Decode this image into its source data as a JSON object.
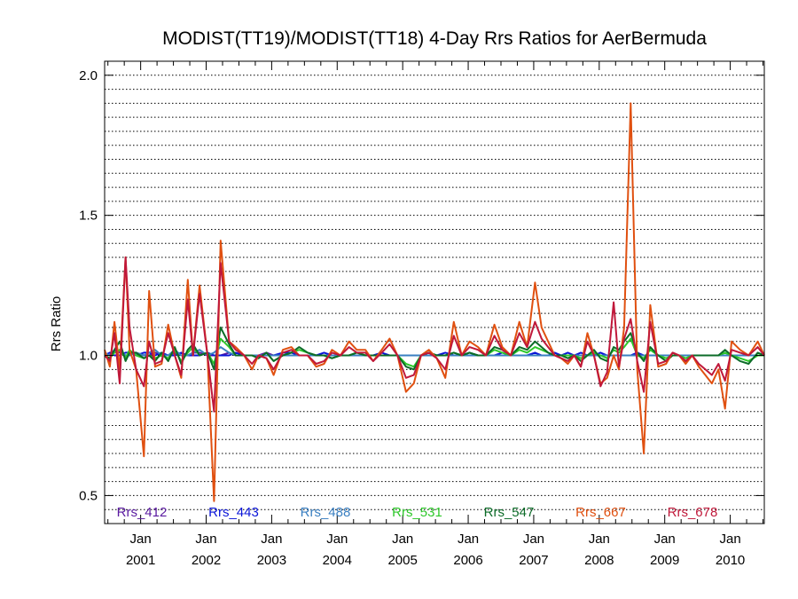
{
  "chart_data": {
    "type": "line",
    "title": "MODIST(TT19)/MODIST(TT18) 4-Day Rrs Ratios for AerBermuda",
    "xlabel": "",
    "ylabel": "Rrs Ratio",
    "ylim": [
      0.4,
      2.05
    ],
    "xlim": [
      2000.45,
      2010.52
    ],
    "yticks": [
      0.5,
      1.0,
      1.5,
      2.0
    ],
    "ytick_labels": [
      "0.5",
      "1.0",
      "1.5",
      "2.0"
    ],
    "xticks": [
      2001.0,
      2002.0,
      2003.0,
      2004.0,
      2005.0,
      2006.0,
      2007.0,
      2008.0,
      2009.0,
      2010.0
    ],
    "xtick_labels": [
      [
        "Jan",
        "2001"
      ],
      [
        "Jan",
        "2002"
      ],
      [
        "Jan",
        "2003"
      ],
      [
        "Jan",
        "2004"
      ],
      [
        "Jan",
        "2005"
      ],
      [
        "Jan",
        "2006"
      ],
      [
        "Jan",
        "2007"
      ],
      [
        "Jan",
        "2008"
      ],
      [
        "Jan",
        "2009"
      ],
      [
        "Jan",
        "2010"
      ]
    ],
    "grid": "horizontal dotted every 0.05",
    "legend_position": "bottom inside",
    "x": [
      2000.45,
      2000.53,
      2000.6,
      2000.68,
      2000.77,
      2000.83,
      2000.93,
      2001.05,
      2001.13,
      2001.22,
      2001.32,
      2001.42,
      2001.52,
      2001.62,
      2001.72,
      2001.8,
      2001.9,
      2002.02,
      2002.12,
      2002.22,
      2002.35,
      2002.45,
      2002.58,
      2002.7,
      2002.8,
      2002.92,
      2003.03,
      2003.17,
      2003.3,
      2003.42,
      2003.55,
      2003.68,
      2003.8,
      2003.92,
      2004.05,
      2004.18,
      2004.3,
      2004.43,
      2004.55,
      2004.68,
      2004.8,
      2004.92,
      2005.05,
      2005.17,
      2005.28,
      2005.4,
      2005.52,
      2005.65,
      2005.78,
      2005.9,
      2006.02,
      2006.15,
      2006.27,
      2006.4,
      2006.52,
      2006.65,
      2006.78,
      2006.9,
      2007.02,
      2007.12,
      2007.22,
      2007.32,
      2007.42,
      2007.52,
      2007.62,
      2007.72,
      2007.82,
      2007.92,
      2008.02,
      2008.12,
      2008.22,
      2008.3,
      2008.38,
      2008.48,
      2008.58,
      2008.68,
      2008.78,
      2008.9,
      2009.02,
      2009.12,
      2009.22,
      2009.32,
      2009.42,
      2009.52,
      2009.62,
      2009.72,
      2009.82,
      2009.92,
      2010.02,
      2010.15,
      2010.28,
      2010.42,
      2010.52
    ],
    "series": [
      {
        "name": "Rrs_412",
        "color": "#5a1aa0",
        "values": [
          1.01,
          1.0,
          1.02,
          1.01,
          1.0,
          1.0,
          1.01,
          1.0,
          1.0,
          1.01,
          1.0,
          1.0,
          1.01,
          1.0,
          1.0,
          1.01,
          1.01,
          1.0,
          1.0,
          1.0,
          1.01,
          1.0,
          1.0,
          1.0,
          1.0,
          1.01,
          1.0,
          1.0,
          1.0,
          1.0,
          1.0,
          1.0,
          1.0,
          1.0,
          1.0,
          1.0,
          1.0,
          1.0,
          1.0,
          1.0,
          1.0,
          1.0,
          1.0,
          1.0,
          1.0,
          1.0,
          1.0,
          1.0,
          1.0,
          1.0,
          1.0,
          1.0,
          1.0,
          1.0,
          1.0,
          1.0,
          1.0,
          1.0,
          1.0,
          1.0,
          1.0,
          1.0,
          1.0,
          1.0,
          1.0,
          1.0,
          1.0,
          1.0,
          1.0,
          1.0,
          1.0,
          1.0,
          1.0,
          1.0,
          1.0,
          1.0,
          1.0,
          1.0,
          1.0,
          1.0,
          1.0,
          1.0,
          1.0,
          1.0,
          1.0,
          1.0,
          1.0,
          1.0,
          1.0,
          1.0,
          1.0,
          1.0,
          1.0
        ]
      },
      {
        "name": "Rrs_443",
        "color": "#0a14d8",
        "values": [
          1.0,
          1.01,
          1.0,
          1.0,
          1.01,
          1.01,
          1.0,
          1.01,
          1.01,
          1.0,
          1.01,
          1.0,
          1.0,
          1.01,
          1.0,
          1.0,
          1.0,
          1.01,
          1.0,
          1.0,
          1.0,
          1.01,
          1.0,
          1.0,
          1.0,
          1.0,
          1.0,
          1.01,
          1.01,
          1.0,
          1.0,
          1.0,
          1.01,
          1.0,
          1.0,
          1.0,
          1.0,
          1.0,
          1.0,
          1.01,
          1.0,
          1.0,
          1.0,
          1.0,
          1.0,
          1.01,
          1.0,
          1.01,
          1.0,
          1.0,
          1.01,
          1.0,
          1.0,
          1.0,
          1.01,
          1.0,
          1.0,
          1.0,
          1.01,
          1.0,
          1.0,
          1.01,
          1.0,
          1.01,
          1.0,
          1.01,
          1.0,
          1.0,
          1.01,
          1.0,
          1.0,
          1.0,
          1.0,
          1.0,
          1.01,
          1.0,
          1.0,
          1.0,
          1.0,
          1.0,
          1.0,
          1.0,
          1.0,
          1.0,
          1.0,
          1.0,
          1.0,
          1.01,
          1.0,
          1.0,
          1.0,
          1.0,
          1.0
        ]
      },
      {
        "name": "Rrs_488",
        "color": "#3a7fc1",
        "values": [
          1.01,
          1.0,
          1.01,
          1.02,
          1.0,
          1.0,
          1.01,
          1.0,
          1.01,
          1.02,
          1.0,
          1.0,
          1.02,
          1.0,
          1.0,
          1.01,
          1.02,
          1.0,
          1.01,
          1.03,
          1.01,
          1.0,
          1.0,
          1.0,
          1.0,
          1.0,
          1.0,
          1.0,
          1.0,
          1.0,
          1.0,
          1.0,
          1.0,
          1.0,
          1.0,
          1.0,
          1.0,
          1.0,
          1.0,
          1.0,
          1.0,
          1.0,
          1.0,
          1.0,
          1.0,
          1.0,
          1.0,
          1.0,
          1.0,
          1.0,
          1.0,
          1.0,
          1.0,
          1.0,
          1.0,
          1.0,
          1.0,
          1.0,
          1.0,
          1.0,
          1.0,
          1.0,
          1.0,
          1.0,
          1.0,
          1.0,
          1.0,
          1.0,
          1.0,
          1.0,
          1.0,
          1.0,
          1.0,
          1.0,
          1.0,
          1.0,
          1.0,
          1.0,
          1.0,
          1.0,
          1.0,
          1.0,
          1.0,
          1.0,
          1.0,
          1.0,
          1.0,
          1.0,
          1.0,
          1.0,
          1.0,
          1.0,
          1.0
        ]
      },
      {
        "name": "Rrs_531",
        "color": "#2ec82a",
        "values": [
          1.0,
          0.99,
          1.01,
          1.02,
          0.99,
          1.02,
          1.0,
          0.99,
          1.0,
          0.99,
          1.0,
          0.99,
          1.02,
          0.98,
          1.01,
          1.03,
          1.0,
          1.01,
          0.97,
          1.06,
          1.03,
          1.0,
          1.0,
          1.0,
          0.99,
          1.01,
          0.98,
          1.0,
          1.01,
          1.02,
          1.01,
          1.0,
          1.0,
          0.99,
          1.0,
          1.0,
          1.01,
          1.0,
          1.0,
          1.0,
          1.0,
          1.0,
          0.97,
          0.96,
          1.0,
          1.01,
          1.0,
          1.0,
          1.01,
          1.0,
          1.01,
          1.0,
          1.0,
          1.02,
          1.01,
          1.0,
          1.02,
          1.01,
          1.03,
          1.02,
          1.01,
          1.0,
          1.0,
          1.0,
          1.0,
          0.99,
          1.0,
          1.01,
          1.0,
          0.99,
          1.02,
          1.01,
          1.03,
          1.06,
          1.0,
          0.99,
          1.02,
          1.0,
          0.99,
          1.0,
          1.0,
          0.99,
          1.0,
          1.0,
          1.0,
          1.0,
          1.0,
          1.01,
          1.0,
          0.99,
          0.98,
          1.0,
          1.0
        ]
      },
      {
        "name": "Rrs_547",
        "color": "#0c6b28",
        "values": [
          1.0,
          0.99,
          1.02,
          1.05,
          0.98,
          1.01,
          1.01,
          0.99,
          1.0,
          0.98,
          1.01,
          0.98,
          1.03,
          0.97,
          1.02,
          1.04,
          1.0,
          1.01,
          0.95,
          1.1,
          1.04,
          1.0,
          1.0,
          1.0,
          0.99,
          1.01,
          0.98,
          1.0,
          1.01,
          1.03,
          1.01,
          1.0,
          1.0,
          0.99,
          1.0,
          1.0,
          1.01,
          1.0,
          1.0,
          1.0,
          1.0,
          1.0,
          0.96,
          0.95,
          1.0,
          1.01,
          1.0,
          1.0,
          1.01,
          1.0,
          1.01,
          1.0,
          1.0,
          1.03,
          1.02,
          1.0,
          1.03,
          1.02,
          1.05,
          1.03,
          1.01,
          1.0,
          1.0,
          0.99,
          1.0,
          0.98,
          1.0,
          1.02,
          0.99,
          0.98,
          1.03,
          1.02,
          1.05,
          1.08,
          1.01,
          0.98,
          1.03,
          1.0,
          0.98,
          1.0,
          1.0,
          0.98,
          1.0,
          1.0,
          1.0,
          1.0,
          1.0,
          1.02,
          1.0,
          0.98,
          0.97,
          1.01,
          1.0
        ]
      },
      {
        "name": "Rrs_667",
        "color": "#e05010",
        "values": [
          1.02,
          0.96,
          1.12,
          0.95,
          1.35,
          1.02,
          0.95,
          0.64,
          1.23,
          0.96,
          0.97,
          1.11,
          1.0,
          0.92,
          1.27,
          1.0,
          1.25,
          1.0,
          0.48,
          1.41,
          1.05,
          1.03,
          1.0,
          0.95,
          1.0,
          0.99,
          0.93,
          1.02,
          1.03,
          1.0,
          1.0,
          0.96,
          0.97,
          1.02,
          1.0,
          1.05,
          1.02,
          1.02,
          0.98,
          1.02,
          1.06,
          1.0,
          0.87,
          0.9,
          1.0,
          1.02,
          0.99,
          0.92,
          1.12,
          1.0,
          1.05,
          1.03,
          1.0,
          1.11,
          1.03,
          1.0,
          1.12,
          1.03,
          1.26,
          1.1,
          1.05,
          1.0,
          0.99,
          0.97,
          1.0,
          0.96,
          1.08,
          1.0,
          0.9,
          0.92,
          1.0,
          0.95,
          1.1,
          1.9,
          0.95,
          0.65,
          1.18,
          0.96,
          0.97,
          1.01,
          1.0,
          0.97,
          1.0,
          0.96,
          0.93,
          0.9,
          0.95,
          0.81,
          1.05,
          1.02,
          1.0,
          1.05,
          1.0
        ]
      },
      {
        "name": "Rrs_678",
        "color": "#c0183a",
        "values": [
          1.0,
          0.98,
          1.08,
          0.9,
          1.35,
          1.1,
          0.95,
          0.89,
          1.05,
          0.97,
          0.98,
          1.08,
          1.0,
          0.93,
          1.2,
          1.0,
          1.22,
          1.0,
          0.8,
          1.33,
          1.05,
          1.02,
          1.0,
          0.97,
          1.0,
          0.99,
          0.95,
          1.01,
          1.02,
          1.0,
          1.0,
          0.97,
          0.98,
          1.01,
          1.0,
          1.03,
          1.01,
          1.01,
          0.98,
          1.01,
          1.04,
          1.0,
          0.92,
          0.93,
          1.0,
          1.01,
          0.99,
          0.95,
          1.07,
          1.0,
          1.03,
          1.02,
          1.0,
          1.07,
          1.02,
          1.0,
          1.08,
          1.03,
          1.12,
          1.06,
          1.03,
          1.0,
          0.99,
          0.98,
          1.0,
          0.96,
          1.05,
          1.0,
          0.89,
          0.94,
          1.19,
          0.96,
          1.06,
          1.13,
          0.98,
          0.87,
          1.12,
          0.97,
          0.98,
          1.01,
          1.0,
          0.98,
          1.0,
          0.97,
          0.95,
          0.93,
          0.97,
          0.91,
          1.02,
          1.01,
          1.0,
          1.03,
          1.0
        ]
      }
    ]
  }
}
